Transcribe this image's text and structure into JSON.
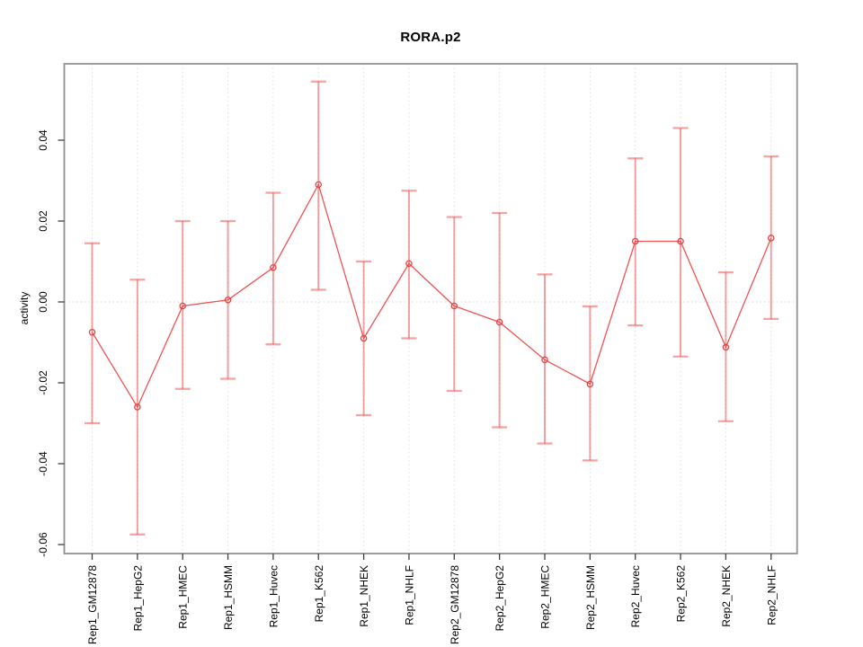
{
  "window": {
    "background": "#ffffff"
  },
  "chart_data": {
    "type": "line",
    "title": "RORA.p2",
    "xlabel": "",
    "ylabel": "activity",
    "legend": "none",
    "grid": {
      "vertical_dotted": true,
      "zero_line_dotted": true
    },
    "categories": [
      "Rep1_GM12878",
      "Rep1_HepG2",
      "Rep1_HMEC",
      "Rep1_HSMM",
      "Rep1_Huvec",
      "Rep1_K562",
      "Rep1_NHEK",
      "Rep1_NHLF",
      "Rep2_GM12878",
      "Rep2_HepG2",
      "Rep2_HMEC",
      "Rep2_HSMM",
      "Rep2_Huvec",
      "Rep2_K562",
      "Rep2_NHEK",
      "Rep2_NHLF"
    ],
    "series": [
      {
        "name": "activity",
        "marker": "open-circle",
        "values": [
          -0.0075,
          -0.026,
          -0.001,
          0.0005,
          0.0085,
          0.029,
          -0.009,
          0.0095,
          -0.001,
          -0.005,
          -0.0143,
          -0.0203,
          0.015,
          0.015,
          -0.0112,
          0.0158
        ],
        "lower": [
          -0.03,
          -0.0575,
          -0.0215,
          -0.019,
          -0.0105,
          0.003,
          -0.028,
          -0.009,
          -0.022,
          -0.031,
          -0.035,
          -0.0392,
          -0.0058,
          -0.0135,
          -0.0295,
          -0.0042
        ],
        "upper": [
          0.0145,
          0.0055,
          0.02,
          0.02,
          0.027,
          0.0545,
          0.01,
          0.0275,
          0.021,
          0.022,
          0.0068,
          -0.0011,
          0.0355,
          0.043,
          0.0073,
          0.036
        ]
      }
    ],
    "yticks": [
      0.04,
      0.02,
      0.0,
      -0.02,
      -0.04,
      -0.06
    ],
    "ytick_labels": [
      "0.04",
      "0.02",
      "0.00",
      "-0.02",
      "-0.04",
      "-0.06"
    ],
    "ylim": [
      -0.0613,
      0.0589
    ],
    "colors": {
      "line": "#f15252",
      "marker": "#e04545",
      "error_bar": "rgba(235,85,85,0.55)",
      "grid_vertical": "#e0e0e0",
      "zero_line": "#d9d9d9",
      "box": "#919191",
      "tick": "#404040",
      "text": "#000000"
    }
  }
}
